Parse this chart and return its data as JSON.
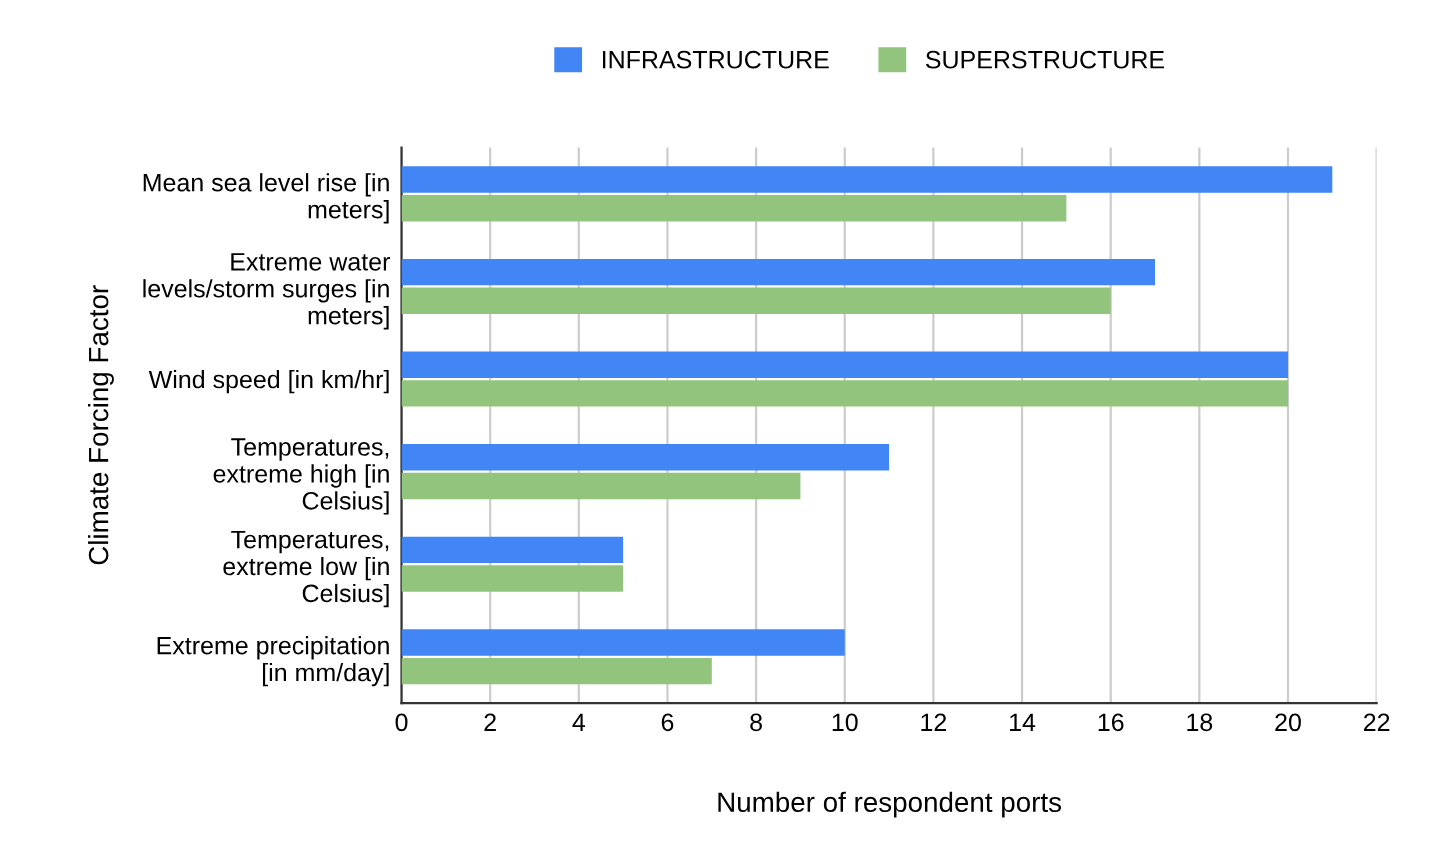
{
  "chart_data": {
    "type": "bar",
    "orientation": "horizontal",
    "categories": [
      "Mean sea level rise [in\nmeters]",
      "Extreme water\nlevels/storm surges [in\nmeters]",
      "Wind speed [in km/hr]",
      "Temperatures,\nextreme high [in\nCelsius]",
      "Temperatures,\nextreme low [in\nCelsius]",
      "Extreme precipitation\n[in mm/day]"
    ],
    "series": [
      {
        "name": "INFRASTRUCTURE",
        "color": "#4285f4",
        "values": [
          21,
          17,
          20,
          11,
          5,
          10
        ]
      },
      {
        "name": "SUPERSTRUCTURE",
        "color": "#93c47d",
        "values": [
          15,
          16,
          20,
          9,
          5,
          7
        ]
      }
    ],
    "xlabel": "Number of respondent ports",
    "ylabel": "Climate Forcing Factor",
    "xlim": [
      0,
      22
    ],
    "xticks": [
      0,
      2,
      4,
      6,
      8,
      10,
      12,
      14,
      16,
      18,
      20,
      22
    ],
    "grid": "x",
    "legend": "top"
  }
}
